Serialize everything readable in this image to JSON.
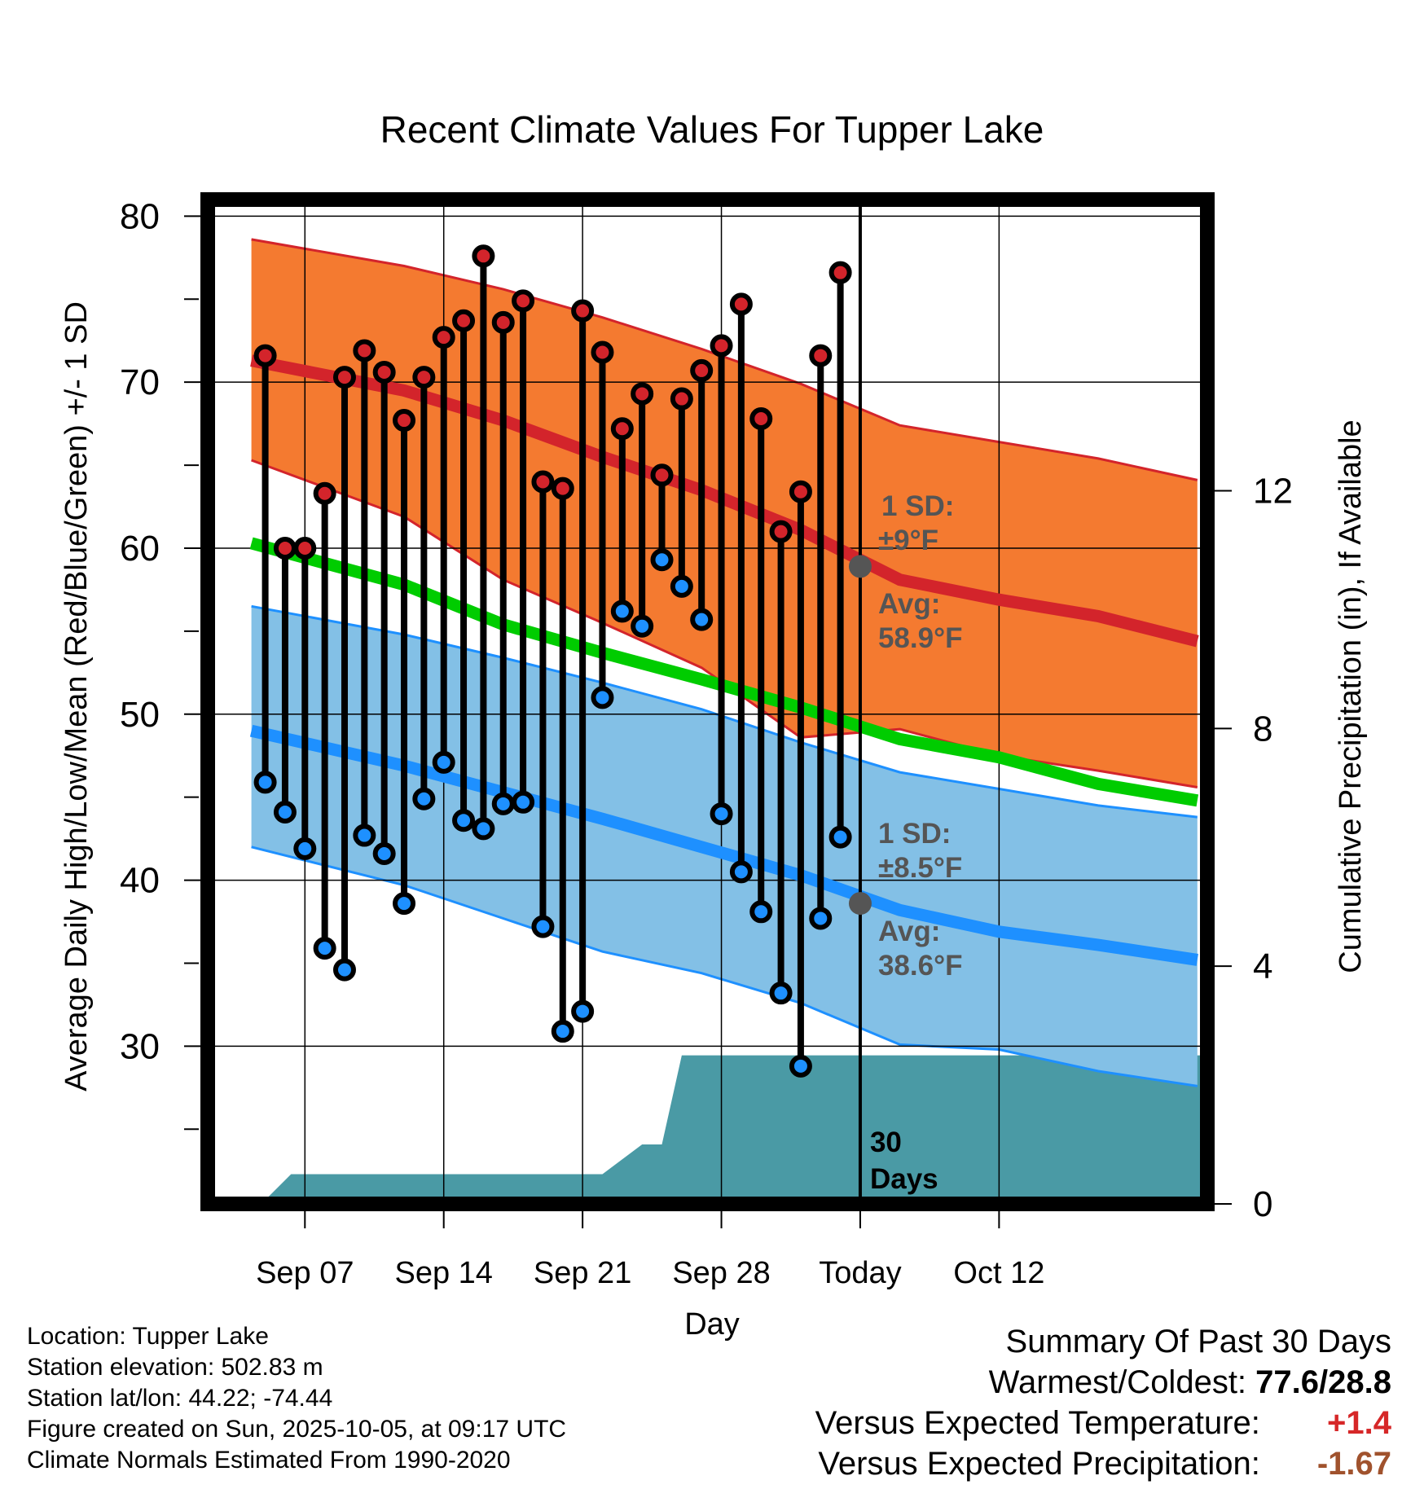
{
  "chart_data": {
    "type": "line",
    "title": "Recent Climate Values For Tupper Lake",
    "xlabel": "Day",
    "ylabel": "Average Daily High/Low/Mean (Red/Blue/Green) +/- 1 SD",
    "y2label": "Cumulative Precipitation (in), If Available",
    "xlim": [
      -4.9,
      45.5
    ],
    "ylim": [
      20.5,
      81
    ],
    "y2lim": [
      0,
      16.9
    ],
    "yticks": [
      30,
      40,
      50,
      60,
      70,
      80
    ],
    "y2ticks": [
      0,
      4,
      8,
      12
    ],
    "xticks": [
      {
        "x": 0,
        "label": "Sep 07"
      },
      {
        "x": 7,
        "label": "Sep 14"
      },
      {
        "x": 14,
        "label": "Sep 21"
      },
      {
        "x": 21,
        "label": "Sep 28"
      },
      {
        "x": 28,
        "label": "Today"
      },
      {
        "x": 35,
        "label": "Oct 12"
      }
    ],
    "today_x": 28,
    "days": [
      -2,
      -1,
      0,
      1,
      2,
      3,
      4,
      5,
      6,
      7,
      8,
      9,
      10,
      11,
      12,
      13,
      14,
      15,
      16,
      17,
      18,
      19,
      20,
      21,
      22,
      23,
      24,
      25,
      26,
      27
    ],
    "highs": [
      71.6,
      60.0,
      60.0,
      63.3,
      70.3,
      71.9,
      70.6,
      67.7,
      70.3,
      72.7,
      73.7,
      77.6,
      73.6,
      74.9,
      64.0,
      63.6,
      74.3,
      71.8,
      67.2,
      69.3,
      64.4,
      69.0,
      70.7,
      72.2,
      74.7,
      67.8,
      61.0,
      63.4,
      71.6,
      76.6
    ],
    "lows": [
      45.9,
      44.1,
      41.9,
      35.9,
      34.6,
      42.7,
      41.6,
      38.6,
      44.9,
      47.1,
      43.6,
      43.1,
      44.6,
      44.7,
      37.2,
      30.9,
      32.1,
      51.0,
      56.2,
      55.3,
      59.3,
      57.7,
      55.7,
      44.0,
      40.5,
      38.1,
      33.2,
      28.8,
      37.7,
      42.6
    ],
    "normals": {
      "x": [
        -2.7,
        5,
        10,
        15,
        20,
        25,
        30,
        35,
        40,
        45
      ],
      "high_mean": [
        71.3,
        69.5,
        67.7,
        65.5,
        63.5,
        61.1,
        58.1,
        56.9,
        55.9,
        54.4
      ],
      "high_upper": [
        78.6,
        77.0,
        75.6,
        73.9,
        72.0,
        69.9,
        67.4,
        66.4,
        65.4,
        64.1
      ],
      "high_lower": [
        65.3,
        61.9,
        58.1,
        55.5,
        52.8,
        48.6,
        49.1,
        47.5,
        46.6,
        45.6
      ],
      "mean": [
        60.3,
        57.8,
        55.4,
        53.7,
        52.1,
        50.4,
        48.5,
        47.4,
        45.8,
        44.8
      ],
      "low_mean": [
        49.0,
        46.9,
        45.3,
        43.7,
        42.0,
        40.3,
        38.2,
        36.9,
        36.1,
        35.2
      ],
      "low_upper": [
        56.5,
        54.8,
        53.4,
        51.9,
        50.3,
        48.3,
        46.5,
        45.5,
        44.5,
        43.8
      ],
      "low_lower": [
        42.0,
        39.7,
        37.7,
        35.7,
        34.4,
        32.6,
        30.1,
        29.8,
        28.5,
        27.6
      ]
    },
    "precip_cumulative": {
      "x": [
        -1.9,
        -0.7,
        1,
        5,
        7,
        10,
        15,
        17,
        18,
        19,
        20,
        25,
        30,
        35,
        40,
        45.5
      ],
      "y": [
        0.1,
        0.5,
        0.5,
        0.5,
        0.5,
        0.5,
        0.5,
        1.0,
        1.0,
        2.5,
        2.5,
        2.5,
        2.5,
        2.5,
        2.5,
        2.5
      ]
    },
    "colors": {
      "high_band": "#f47a30",
      "high_line": "#d3242b",
      "low_band": "#83c0e6",
      "low_line": "#1e90ff",
      "mean_line": "#00cc00",
      "precip": "#4a9aa5",
      "high_marker": "#d3242b",
      "low_marker": "#1e90ff",
      "annot": "#555555"
    },
    "annotations": {
      "high_sd_line1": "1 SD:",
      "high_sd_line2": "±9°F",
      "high_avg_line1": "Avg:",
      "high_avg_line2": "58.9°F",
      "high_avg_value": 58.9,
      "low_sd_line1": "1 SD:",
      "low_sd_line2": "±8.5°F",
      "low_avg_line1": "Avg:",
      "low_avg_line2": "38.6°F",
      "low_avg_value": 38.6,
      "period_line1": "30",
      "period_line2": "Days"
    }
  },
  "info": {
    "location": "Location: Tupper Lake",
    "elevation": "Station elevation: 502.83 m",
    "latlon": "Station lat/lon: 44.22; -74.44",
    "created": "Figure created on Sun, 2025-10-05, at 09:17 UTC",
    "normals": "Climate Normals Estimated From 1990-2020"
  },
  "summary": {
    "heading": "Summary Of Past 30 Days",
    "warmest_label": "Warmest/Coldest:",
    "warmest_value": "77.6/28.8",
    "temp_label": "Versus Expected Temperature:",
    "temp_value": "+1.4",
    "precip_label": "Versus Expected Precipitation:",
    "precip_value": "-1.67"
  }
}
